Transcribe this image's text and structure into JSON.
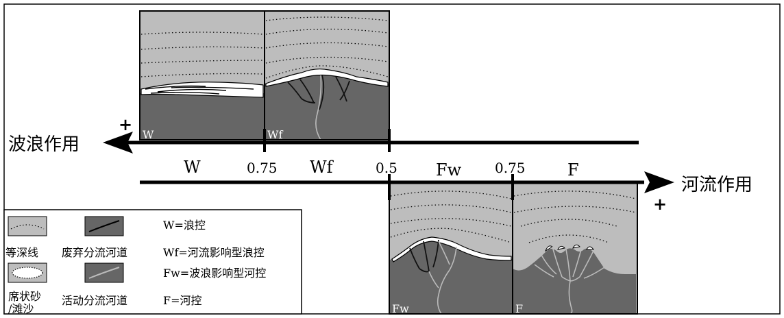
{
  "left_arrow_label": "波浪作用",
  "right_arrow_label": "河流作用",
  "left_plus": "+",
  "right_plus": "+",
  "axis": {
    "zones": [
      "W",
      "Wf",
      "Fw",
      "F"
    ],
    "ticks": [
      "0.75",
      "0.5",
      "0.75"
    ]
  },
  "panels": {
    "W": "W",
    "Wf": "Wf",
    "Fw": "Fw",
    "F": "F"
  },
  "legend": {
    "isobath_label": "等深线",
    "abandoned_channel_label": "废弃分流河道",
    "sheet_sand_label_1": "席状砂",
    "sheet_sand_label_2": "/滩沙",
    "active_channel_label": "活动分流河道",
    "def_W": "W=浪控",
    "def_Wf": "Wf=河流影响型浪控",
    "def_Fw": "Fw=波浪影响型河控",
    "def_F": "F=河控"
  },
  "colors": {
    "water": "#bdbdbd",
    "land": "#666666",
    "abandoned_channel": "#1a1a1a",
    "active_channel": "#b8b8b8",
    "sand": "#ffffff",
    "line": "#000000"
  }
}
